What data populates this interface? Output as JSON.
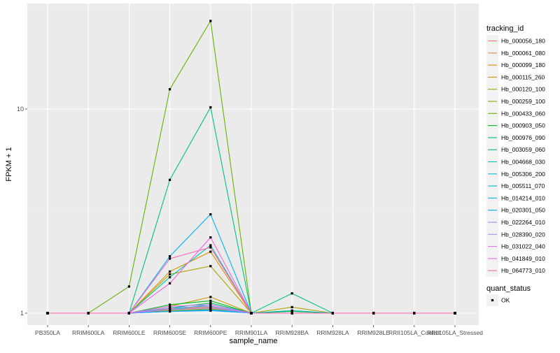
{
  "chart_data": {
    "type": "line",
    "xlabel": "sample_name",
    "ylabel": "FPKM + 1",
    "y_scale": "log10",
    "y_ticks": [
      1,
      10
    ],
    "ylim": [
      0.9,
      30
    ],
    "grid": true,
    "legend_placement": "right",
    "categories": [
      "PB350LA",
      "RRIM600LA",
      "RRIM600LE",
      "RRIM600SE",
      "RRIM600PE",
      "RRIM901LA",
      "RRIM928BA",
      "RRIM928LA",
      "RRIM928LE",
      "RRII105LA_Control",
      "RRII105LA_Stressed"
    ],
    "legend_title": "tracking_id",
    "series": [
      {
        "name": "Hb_000056_180",
        "color": "#F8766D",
        "values": [
          1.0,
          1.0,
          1.0,
          1.02,
          1.04,
          1.0,
          1.0,
          1.0,
          1.0,
          1.0,
          1.0
        ]
      },
      {
        "name": "Hb_000061_080",
        "color": "#EC8239",
        "values": [
          1.0,
          1.0,
          1.0,
          1.05,
          1.07,
          1.0,
          1.0,
          1.0,
          1.0,
          1.0,
          1.0
        ]
      },
      {
        "name": "Hb_000099_180",
        "color": "#DB8E00",
        "values": [
          1.0,
          1.0,
          1.0,
          1.6,
          2.0,
          1.0,
          1.0,
          1.0,
          1.0,
          1.0,
          1.0
        ]
      },
      {
        "name": "Hb_000115_260",
        "color": "#C79800",
        "values": [
          1.0,
          1.0,
          1.0,
          1.08,
          1.2,
          1.0,
          1.0,
          1.0,
          1.0,
          1.0,
          1.0
        ]
      },
      {
        "name": "Hb_000120_100",
        "color": "#AEA200",
        "values": [
          1.0,
          1.0,
          1.0,
          1.55,
          1.7,
          1.0,
          1.07,
          1.0,
          1.0,
          1.0,
          1.0
        ]
      },
      {
        "name": "Hb_000259_100",
        "color": "#8FAA00",
        "values": [
          1.0,
          1.0,
          1.0,
          1.03,
          1.05,
          1.0,
          1.0,
          1.0,
          1.0,
          1.0,
          1.0
        ]
      },
      {
        "name": "Hb_000433_060",
        "color": "#64B200",
        "values": [
          1.0,
          1.0,
          1.35,
          12.5,
          27.0,
          1.0,
          1.0,
          1.0,
          1.0,
          1.0,
          1.0
        ]
      },
      {
        "name": "Hb_000903_050",
        "color": "#00B81B",
        "values": [
          1.0,
          1.0,
          1.0,
          1.1,
          1.15,
          1.0,
          1.02,
          1.0,
          1.0,
          1.0,
          1.0
        ]
      },
      {
        "name": "Hb_000976_090",
        "color": "#00BD5C",
        "values": [
          1.0,
          1.0,
          1.0,
          1.06,
          1.12,
          1.0,
          1.0,
          1.0,
          1.0,
          1.0,
          1.0
        ]
      },
      {
        "name": "Hb_003059_060",
        "color": "#00C085",
        "values": [
          1.0,
          1.0,
          1.0,
          4.5,
          10.2,
          1.0,
          1.25,
          1.0,
          1.0,
          1.0,
          1.0
        ]
      },
      {
        "name": "Hb_004668_030",
        "color": "#00C1A7",
        "values": [
          1.0,
          1.0,
          1.0,
          1.5,
          2.15,
          1.0,
          1.0,
          1.0,
          1.0,
          1.0,
          1.0
        ]
      },
      {
        "name": "Hb_005306_200",
        "color": "#00BFC4",
        "values": [
          1.0,
          1.0,
          1.0,
          1.04,
          1.1,
          1.0,
          1.03,
          1.0,
          1.0,
          1.0,
          1.0
        ]
      },
      {
        "name": "Hb_005511_070",
        "color": "#00BADE",
        "values": [
          1.0,
          1.0,
          1.0,
          1.02,
          1.04,
          1.0,
          1.0,
          1.0,
          1.0,
          1.0,
          1.0
        ]
      },
      {
        "name": "Hb_014214_010",
        "color": "#00B2F3",
        "values": [
          1.0,
          1.0,
          1.0,
          1.9,
          3.05,
          1.0,
          1.0,
          1.0,
          1.0,
          1.0,
          1.0
        ]
      },
      {
        "name": "Hb_020301_050",
        "color": "#00A6FF",
        "values": [
          1.0,
          1.0,
          1.0,
          1.02,
          1.03,
          1.0,
          1.0,
          1.0,
          1.0,
          1.0,
          1.0
        ]
      },
      {
        "name": "Hb_022264_010",
        "color": "#7C96FF",
        "values": [
          1.0,
          1.0,
          1.0,
          1.06,
          1.08,
          1.0,
          1.0,
          1.0,
          1.0,
          1.0,
          1.0
        ]
      },
      {
        "name": "Hb_028390_020",
        "color": "#BC81FF",
        "values": [
          1.0,
          1.0,
          1.0,
          1.04,
          1.06,
          1.0,
          1.0,
          1.0,
          1.0,
          1.0,
          1.0
        ]
      },
      {
        "name": "Hb_031022_040",
        "color": "#E26EF7",
        "values": [
          1.0,
          1.0,
          1.0,
          1.08,
          1.1,
          1.0,
          1.0,
          1.0,
          1.0,
          1.0,
          1.0
        ]
      },
      {
        "name": "Hb_041849_010",
        "color": "#F863DF",
        "values": [
          1.0,
          1.0,
          1.0,
          1.4,
          2.35,
          1.0,
          1.0,
          1.0,
          1.0,
          1.0,
          1.0
        ]
      },
      {
        "name": "Hb_064773_010",
        "color": "#FF62BC",
        "values": [
          1.0,
          1.0,
          1.0,
          1.85,
          2.1,
          1.0,
          1.0,
          1.0,
          1.0,
          1.0,
          1.0
        ]
      }
    ],
    "shape_legend_title": "quant_status",
    "shape_legend_items": [
      "OK"
    ]
  }
}
